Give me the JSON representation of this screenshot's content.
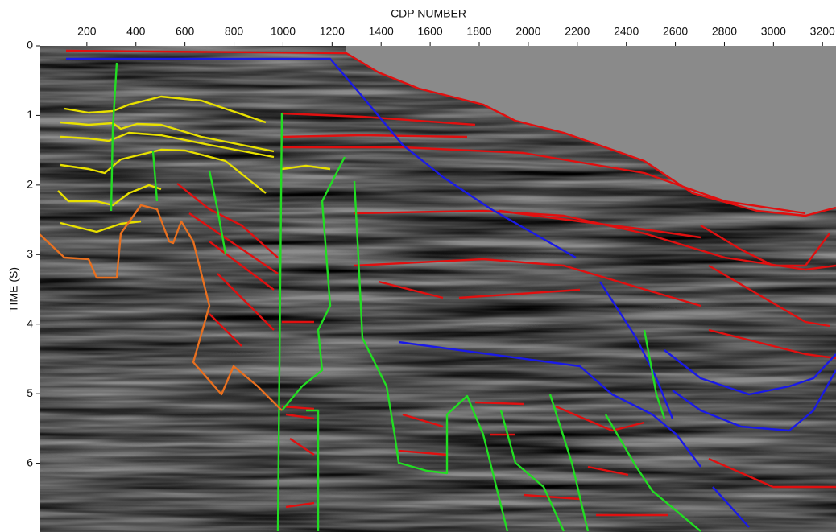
{
  "chart_data": {
    "type": "seismic-section",
    "x_label": "CDP NUMBER",
    "y_label": "TIME (S)",
    "xlim": [
      10,
      3255
    ],
    "ylim": [
      0,
      7
    ],
    "xticks": [
      200,
      400,
      600,
      800,
      1000,
      1200,
      1400,
      1600,
      1800,
      2000,
      2200,
      2400,
      2600,
      2800,
      3000,
      3200
    ],
    "yticks": [
      0,
      1,
      2,
      3,
      4,
      5,
      6
    ]
  }
}
